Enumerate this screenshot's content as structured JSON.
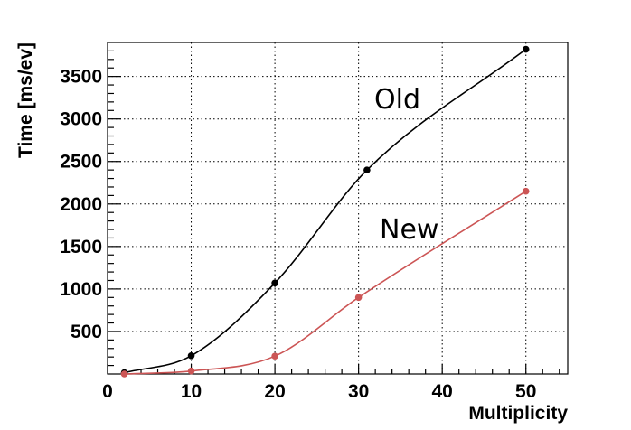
{
  "chart_data": {
    "type": "line",
    "xlabel": "Multiplicity",
    "ylabel": "Time [ms/ev]",
    "xlim": [
      0,
      55
    ],
    "ylim": [
      0,
      3900
    ],
    "x_ticks": [
      0,
      10,
      20,
      30,
      40,
      50
    ],
    "y_ticks": [
      500,
      1000,
      1500,
      2000,
      2500,
      3000,
      3500
    ],
    "grid": true,
    "series": [
      {
        "name": "Old",
        "color": "#000000",
        "x": [
          2,
          10,
          20,
          31,
          50
        ],
        "y": [
          15,
          215,
          1070,
          2400,
          3820
        ]
      },
      {
        "name": "New",
        "color": "#cc5555",
        "x": [
          2,
          10,
          20,
          30,
          50
        ],
        "y": [
          0,
          35,
          210,
          900,
          2150
        ]
      }
    ]
  }
}
